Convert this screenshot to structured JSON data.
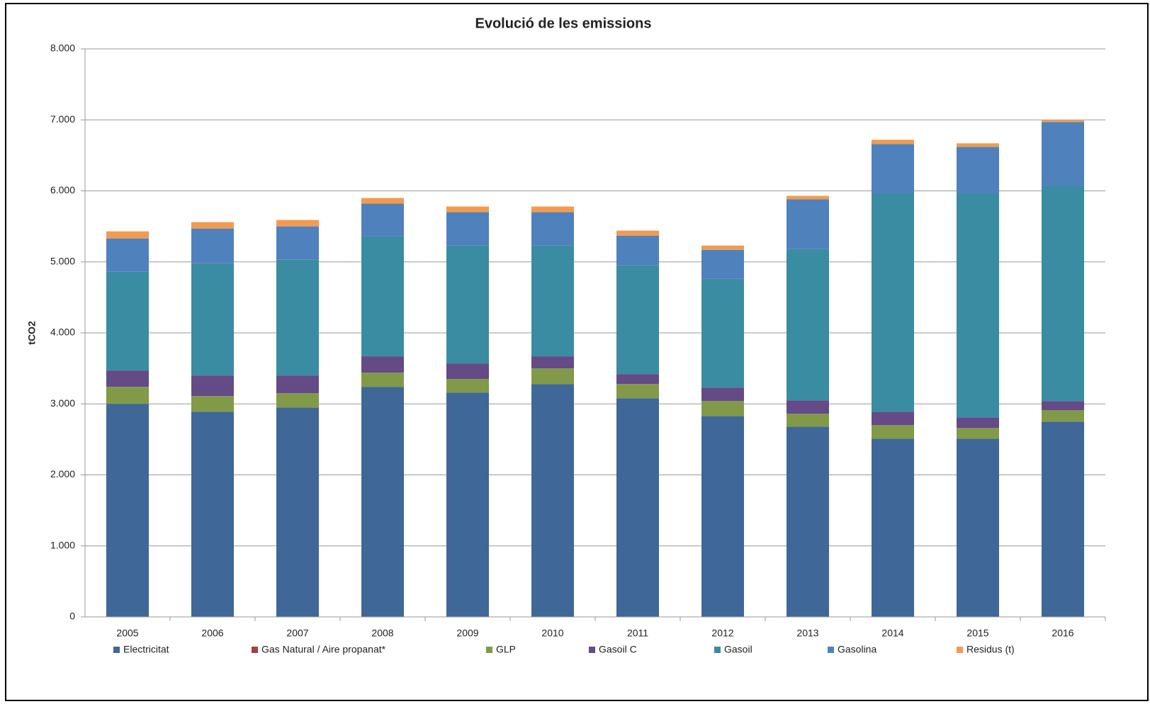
{
  "chart_data": {
    "type": "stacked_bar",
    "title": "Evolució de les emissions",
    "y_label": "tCO2",
    "categories": [
      "2005",
      "2006",
      "2007",
      "2008",
      "2009",
      "2010",
      "2011",
      "2012",
      "2013",
      "2014",
      "2015",
      "2016"
    ],
    "series": [
      {
        "name": "Electricitat",
        "color": "#3f6797",
        "values": [
          3000,
          2890,
          2950,
          3240,
          3160,
          3280,
          3080,
          2830,
          2680,
          2510,
          2510,
          2750
        ]
      },
      {
        "name": "Gas Natural / Aire propanat*",
        "color": "#a5403e",
        "values": [
          0,
          0,
          0,
          0,
          0,
          0,
          0,
          0,
          0,
          0,
          0,
          0
        ]
      },
      {
        "name": "GLP",
        "color": "#819a47",
        "values": [
          240,
          220,
          200,
          200,
          190,
          220,
          200,
          210,
          180,
          190,
          150,
          160
        ]
      },
      {
        "name": "Gasoil C",
        "color": "#644a86",
        "values": [
          230,
          290,
          250,
          230,
          220,
          170,
          140,
          190,
          190,
          190,
          150,
          130
        ]
      },
      {
        "name": "Gasoil",
        "color": "#3a8ca3",
        "values": [
          1390,
          1580,
          1630,
          1690,
          1660,
          1560,
          1530,
          1530,
          2130,
          3070,
          3150,
          3030
        ]
      },
      {
        "name": "Gasolina",
        "color": "#4f81bd",
        "values": [
          470,
          490,
          470,
          460,
          470,
          470,
          420,
          410,
          700,
          700,
          660,
          900
        ]
      },
      {
        "name": "Residus (t)",
        "color": "#f29b50",
        "values": [
          100,
          90,
          90,
          80,
          80,
          80,
          70,
          60,
          50,
          60,
          50,
          30
        ]
      }
    ],
    "ylim": [
      0,
      8000
    ],
    "yticks": [
      0,
      {
        "value": 1000,
        "label": "1.000"
      },
      {
        "value": 2000,
        "label": "2.000"
      },
      {
        "value": 3000,
        "label": "3.000"
      },
      {
        "value": 4000,
        "label": "4.000"
      },
      {
        "value": 5000,
        "label": "5.000"
      },
      {
        "value": 6000,
        "label": "6.000"
      },
      {
        "value": 7000,
        "label": "7.000"
      },
      {
        "value": 8000,
        "label": "8.000"
      }
    ],
    "grid": true,
    "legend": "bottom"
  }
}
